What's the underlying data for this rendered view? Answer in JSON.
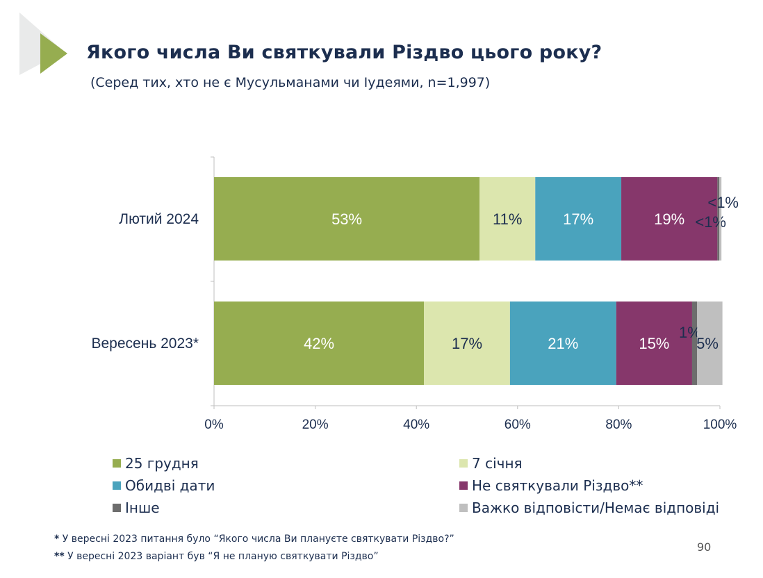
{
  "title": "Якого числа Ви святкували Різдво цього року?",
  "subtitle": "(Серед тих, хто не є Мусульманами чи Іудеями, n=1,997)",
  "chart_data": {
    "type": "bar",
    "orientation": "horizontal",
    "stacked": true,
    "categories": [
      "Лютий 2024",
      "Вересень 2023*"
    ],
    "series": [
      {
        "name": "25 грудня",
        "color": "#96ad50",
        "values": [
          52.5,
          41.5
        ],
        "labels": [
          "53%",
          "42%"
        ],
        "label_color": "#ffffff"
      },
      {
        "name": "7 січня",
        "color": "#dce6ae",
        "values": [
          11,
          17
        ],
        "labels": [
          "11%",
          "17%"
        ],
        "label_color": "#1c2e4f"
      },
      {
        "name": "Обидві дати",
        "color": "#4aa3bd",
        "values": [
          17,
          21
        ],
        "labels": [
          "17%",
          "21%"
        ],
        "label_color": "#ffffff"
      },
      {
        "name": "Не святкували Різдво**",
        "color": "#86376b",
        "values": [
          19,
          15
        ],
        "labels": [
          "19%",
          "15%"
        ],
        "label_color": "#ffffff"
      },
      {
        "name": "Інше",
        "color": "#6d6d6d",
        "values": [
          0.4,
          1
        ],
        "labels": [
          "<1%",
          "1%"
        ],
        "label_color": "#1c2e4f"
      },
      {
        "name": "Важко відповісти/Немає відповіді",
        "color": "#bfbfbf",
        "values": [
          0.4,
          5
        ],
        "labels": [
          "<1%",
          "5%"
        ],
        "label_color": "#1c2e4f"
      }
    ],
    "xlim": [
      0,
      100
    ],
    "xticks": [
      "0%",
      "20%",
      "40%",
      "60%",
      "80%",
      "100%"
    ],
    "legend_position": "bottom"
  },
  "footnotes": [
    {
      "mark": "*",
      "text": " У вересні 2023 питання було “Якого числа Ви плануєте святкувати Різдво?”"
    },
    {
      "mark": "**",
      "text": " У вересні 2023 варіант був “Я не планую святкувати Різдво”"
    }
  ],
  "page_number": "90"
}
